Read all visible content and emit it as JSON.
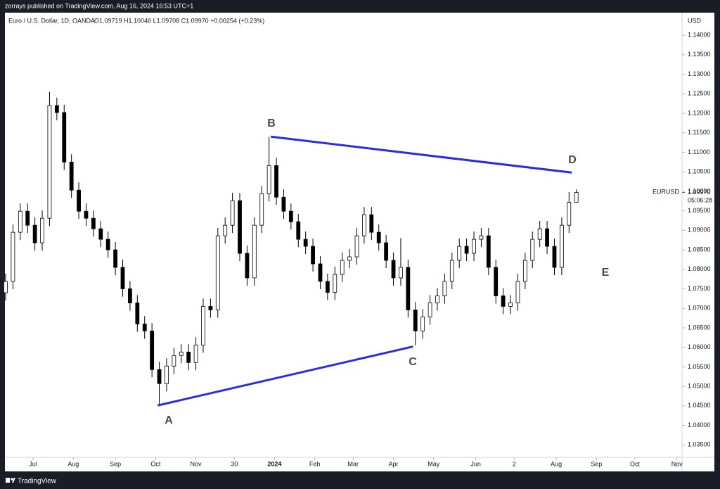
{
  "header": {
    "publisher": "zorrays published on TradingView.com, Aug 16, 2024 16:53 UTC+1",
    "footer": "TradingView"
  },
  "chart_data": {
    "type": "candlestick",
    "title": "Euro / U.S. Dollar, 1D, OANDA",
    "subtitle": "O1.09719 H1.10046 L1.09708 C1.09970 +0.00254 (+0.23%)",
    "currency": "USD",
    "symbol": "EURUSD",
    "countdown": "05:06:28",
    "last_price": {
      "value": 1.0997,
      "label": "1.09970"
    },
    "color": "#000000",
    "grid": false,
    "x": [
      0,
      4,
      8,
      12,
      16,
      20,
      24,
      28,
      32,
      36,
      40,
      44,
      48,
      52,
      56,
      60,
      64,
      68,
      72,
      76,
      80,
      84,
      88,
      92,
      96,
      100,
      104,
      108,
      112,
      116,
      120,
      124,
      128,
      132,
      136,
      140,
      144,
      148,
      152,
      156,
      160,
      164,
      168,
      172,
      176,
      180,
      184,
      188,
      192,
      196,
      200,
      204,
      208,
      212,
      216,
      220,
      224,
      228,
      232,
      236,
      240,
      244,
      248,
      252,
      256,
      260,
      264,
      268,
      272,
      276,
      280,
      284,
      288,
      292,
      296,
      300,
      304,
      308,
      312
    ],
    "open": [
      1.074,
      1.0769,
      1.0895,
      1.0949,
      1.0913,
      1.0868,
      1.0931,
      1.122,
      1.1202,
      1.1075,
      1.1003,
      1.0949,
      1.0931,
      1.0904,
      1.0877,
      1.085,
      1.0805,
      1.075,
      1.0714,
      1.066,
      1.0642,
      1.0543,
      1.0507,
      1.0552,
      1.0579,
      1.0588,
      1.0561,
      1.0606,
      1.0705,
      1.0696,
      1.0886,
      1.0913,
      1.0976,
      1.0841,
      1.0778,
      1.0913,
      1.0994,
      1.1066,
      1.0985,
      1.0949,
      1.0922,
      1.0877,
      1.0859,
      1.0814,
      1.0769,
      1.0741,
      1.0787,
      1.0823,
      1.0832,
      1.0886,
      1.094,
      1.0895,
      1.0868,
      1.0823,
      1.0778,
      1.0805,
      1.0696,
      1.0642,
      1.0678,
      1.0714,
      1.0732,
      1.0769,
      1.0823,
      1.0859,
      1.0841,
      1.0877,
      1.0886,
      1.0805,
      1.0732,
      1.0705,
      1.0714,
      1.0769,
      1.0823,
      1.0877,
      1.0904,
      1.0859,
      1.0805,
      1.0913,
      1.0972
    ],
    "high": [
      1.0789,
      1.0915,
      1.0969,
      1.0969,
      1.0933,
      1.0951,
      1.1255,
      1.124,
      1.1222,
      1.1095,
      1.1023,
      1.0969,
      1.0951,
      1.0924,
      1.0897,
      1.087,
      1.0825,
      1.077,
      1.0734,
      1.068,
      1.0662,
      1.0563,
      1.0572,
      1.0599,
      1.0608,
      1.0608,
      1.0626,
      1.0725,
      1.0725,
      1.0906,
      1.0933,
      1.0996,
      1.0996,
      1.0861,
      1.0933,
      1.1014,
      1.114,
      1.1086,
      1.1005,
      1.0969,
      1.0942,
      1.0897,
      1.0879,
      1.0834,
      1.0789,
      1.0807,
      1.0843,
      1.0852,
      1.0906,
      1.096,
      1.096,
      1.0915,
      1.0888,
      1.0843,
      1.088,
      1.0825,
      1.0716,
      1.0698,
      1.0734,
      1.0752,
      1.0789,
      1.0843,
      1.0879,
      1.0879,
      1.0897,
      1.0906,
      1.0906,
      1.0825,
      1.0752,
      1.0734,
      1.0789,
      1.0843,
      1.0897,
      1.0924,
      1.0924,
      1.0879,
      1.0933,
      1.0998,
      1.1005
    ],
    "low": [
      1.072,
      1.0749,
      1.0875,
      1.0893,
      1.0848,
      1.0848,
      1.0911,
      1.1182,
      1.1055,
      1.0983,
      1.0929,
      1.0911,
      1.0884,
      1.0857,
      1.083,
      1.0785,
      1.073,
      1.0694,
      1.064,
      1.0622,
      1.0523,
      1.0453,
      1.0487,
      1.0532,
      1.0559,
      1.0541,
      1.0541,
      1.0586,
      1.0676,
      1.0676,
      1.0866,
      1.0893,
      1.0821,
      1.0758,
      1.0758,
      1.0893,
      1.0974,
      1.0965,
      1.0929,
      1.0902,
      1.0857,
      1.0839,
      1.0794,
      1.0749,
      1.0721,
      1.0721,
      1.0767,
      1.0803,
      1.0812,
      1.0866,
      1.0875,
      1.0848,
      1.0803,
      1.0758,
      1.0758,
      1.0676,
      1.0605,
      1.0622,
      1.0658,
      1.0694,
      1.0712,
      1.0749,
      1.0803,
      1.0821,
      1.0821,
      1.0857,
      1.0785,
      1.0712,
      1.0685,
      1.0685,
      1.0694,
      1.0749,
      1.0803,
      1.0857,
      1.0839,
      1.0785,
      1.0785,
      1.0893,
      1.0971
    ],
    "close": [
      1.0769,
      1.0895,
      1.0949,
      1.0913,
      1.0868,
      1.0931,
      1.122,
      1.1202,
      1.1075,
      1.1003,
      1.0949,
      1.0931,
      1.0904,
      1.0877,
      1.085,
      1.0805,
      1.075,
      1.0714,
      1.066,
      1.0642,
      1.0543,
      1.0507,
      1.0552,
      1.0579,
      1.0588,
      1.0561,
      1.0606,
      1.0705,
      1.0696,
      1.0886,
      1.0913,
      1.0976,
      1.0841,
      1.0778,
      1.0913,
      1.0994,
      1.1066,
      1.0985,
      1.0949,
      1.0922,
      1.0877,
      1.0859,
      1.0814,
      1.0769,
      1.0741,
      1.0787,
      1.0823,
      1.0832,
      1.0886,
      1.094,
      1.0895,
      1.0868,
      1.0823,
      1.0778,
      1.0805,
      1.0696,
      1.0642,
      1.0678,
      1.0714,
      1.0732,
      1.0769,
      1.0823,
      1.0859,
      1.0841,
      1.0877,
      1.0886,
      1.0805,
      1.0732,
      1.0705,
      1.0714,
      1.0769,
      1.0823,
      1.0877,
      1.0904,
      1.0859,
      1.0805,
      1.0913,
      1.0972,
      1.0997
    ],
    "xlim": [
      0,
      369
    ],
    "xticks": [
      {
        "value": 15,
        "label": "Jul"
      },
      {
        "value": 37,
        "label": "Aug"
      },
      {
        "value": 60,
        "label": "Sep"
      },
      {
        "value": 82,
        "label": "Oct"
      },
      {
        "value": 104,
        "label": "Nov"
      },
      {
        "value": 125,
        "label": "30"
      },
      {
        "value": 147,
        "label": "2024"
      },
      {
        "value": 169,
        "label": "Feb"
      },
      {
        "value": 190,
        "label": "Mar"
      },
      {
        "value": 212,
        "label": "Apr"
      },
      {
        "value": 234,
        "label": "May"
      },
      {
        "value": 257,
        "label": "Jun"
      },
      {
        "value": 278,
        "label": "2"
      },
      {
        "value": 301,
        "label": "Aug"
      },
      {
        "value": 323,
        "label": "Sep"
      },
      {
        "value": 344,
        "label": "Oct"
      },
      {
        "value": 367,
        "label": "Nov"
      }
    ],
    "ylim": [
      1.0318,
      1.1458
    ],
    "yticks": [
      {
        "value": 1.14,
        "label": "1.14000"
      },
      {
        "value": 1.135,
        "label": "1.13500"
      },
      {
        "value": 1.13,
        "label": "1.13000"
      },
      {
        "value": 1.125,
        "label": "1.12500"
      },
      {
        "value": 1.12,
        "label": "1.12000"
      },
      {
        "value": 1.115,
        "label": "1.11500"
      },
      {
        "value": 1.11,
        "label": "1.11000"
      },
      {
        "value": 1.105,
        "label": "1.10500"
      },
      {
        "value": 1.1,
        "label": "1.10000"
      },
      {
        "value": 1.095,
        "label": "1.09500"
      },
      {
        "value": 1.09,
        "label": "1.09000"
      },
      {
        "value": 1.085,
        "label": "1.08500"
      },
      {
        "value": 1.08,
        "label": "1.08000"
      },
      {
        "value": 1.075,
        "label": "1.07500"
      },
      {
        "value": 1.07,
        "label": "1.07000"
      },
      {
        "value": 1.065,
        "label": "1.06500"
      },
      {
        "value": 1.06,
        "label": "1.06000"
      },
      {
        "value": 1.055,
        "label": "1.05500"
      },
      {
        "value": 1.05,
        "label": "1.05000"
      },
      {
        "value": 1.045,
        "label": "1.04500"
      },
      {
        "value": 1.04,
        "label": "1.04000"
      },
      {
        "value": 1.035,
        "label": "1.03500"
      }
    ],
    "trendlines": [
      {
        "x": [
          83.1,
          222.7
        ],
        "y": [
          1.0451,
          1.0602
        ],
        "color": "#2b2be0"
      },
      {
        "x": [
          145.0,
          309.5
        ],
        "y": [
          1.114,
          1.1048
        ],
        "color": "#2b2be0"
      }
    ],
    "annotations": [
      "A",
      "B",
      "C",
      "D",
      "E"
    ]
  }
}
